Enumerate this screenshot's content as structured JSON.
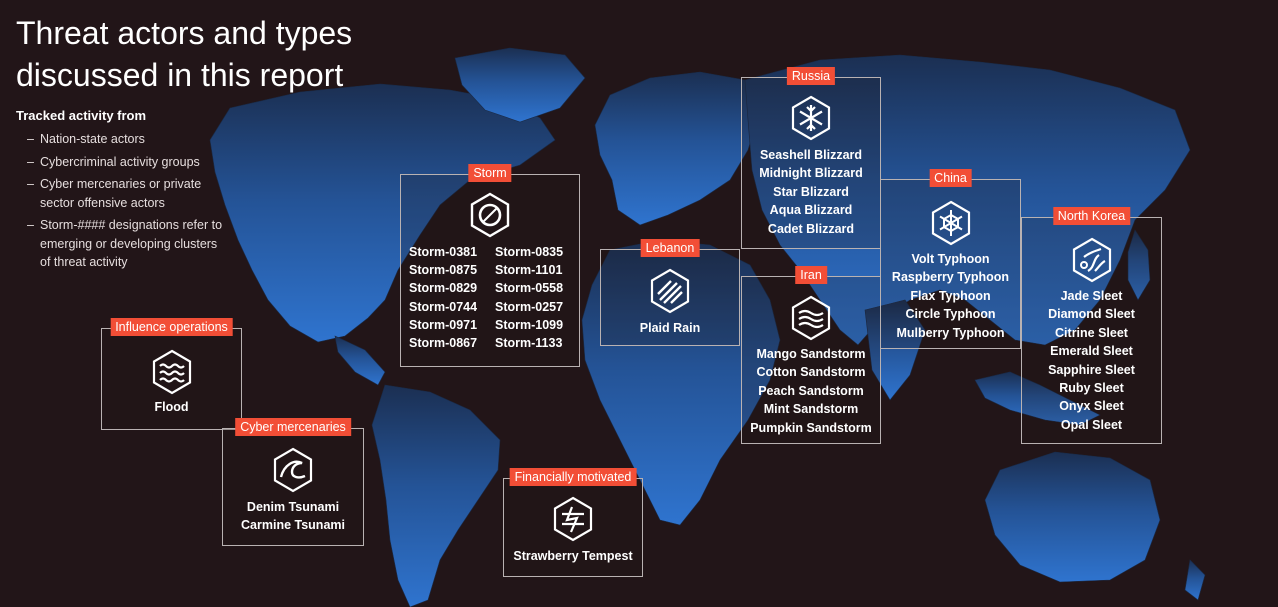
{
  "title": {
    "line1": "Threat actors and types",
    "line2": "discussed in this report"
  },
  "tracked": {
    "heading": "Tracked activity from",
    "items": [
      "Nation-state actors",
      "Cybercriminal activity groups",
      "Cyber mercenaries or private sector offensive actors",
      "Storm-#### designations refer to emerging or developing clusters of threat activity"
    ]
  },
  "colors": {
    "background": "#221518",
    "accent": "#f24e36",
    "map": "#2d6bc0",
    "border": "#b9b2b2"
  },
  "panels": {
    "influence": {
      "label": "Influence operations",
      "icon": "waves-icon",
      "names": [
        "Flood"
      ]
    },
    "cyber_mercenaries": {
      "label": "Cyber mercenaries",
      "icon": "tsunami-icon",
      "names": [
        "Denim Tsunami",
        "Carmine Tsunami"
      ]
    },
    "storm": {
      "label": "Storm",
      "icon": "storm-ring-icon",
      "names": [
        "Storm-0381",
        "Storm-0835",
        "Storm-0875",
        "Storm-1101",
        "Storm-0829",
        "Storm-0558",
        "Storm-0744",
        "Storm-0257",
        "Storm-0971",
        "Storm-1099",
        "Storm-0867",
        "Storm-1133"
      ]
    },
    "financially_motivated": {
      "label": "Financially motivated",
      "icon": "tempest-icon",
      "names": [
        "Strawberry Tempest"
      ]
    },
    "lebanon": {
      "label": "Lebanon",
      "icon": "rain-icon",
      "names": [
        "Plaid Rain"
      ]
    },
    "russia": {
      "label": "Russia",
      "icon": "blizzard-icon",
      "names": [
        "Seashell Blizzard",
        "Midnight Blizzard",
        "Star Blizzard",
        "Aqua Blizzard",
        "Cadet Blizzard"
      ]
    },
    "iran": {
      "label": "Iran",
      "icon": "sandstorm-icon",
      "names": [
        "Mango Sandstorm",
        "Cotton Sandstorm",
        "Peach Sandstorm",
        "Mint Sandstorm",
        "Pumpkin Sandstorm"
      ]
    },
    "china": {
      "label": "China",
      "icon": "typhoon-icon",
      "names": [
        "Volt Typhoon",
        "Raspberry Typhoon",
        "Flax Typhoon",
        "Circle Typhoon",
        "Mulberry Typhoon"
      ]
    },
    "north_korea": {
      "label": "North Korea",
      "icon": "sleet-icon",
      "names": [
        "Jade Sleet",
        "Diamond Sleet",
        "Citrine Sleet",
        "Emerald Sleet",
        "Sapphire Sleet",
        "Ruby Sleet",
        "Onyx Sleet",
        "Opal Sleet"
      ]
    }
  }
}
